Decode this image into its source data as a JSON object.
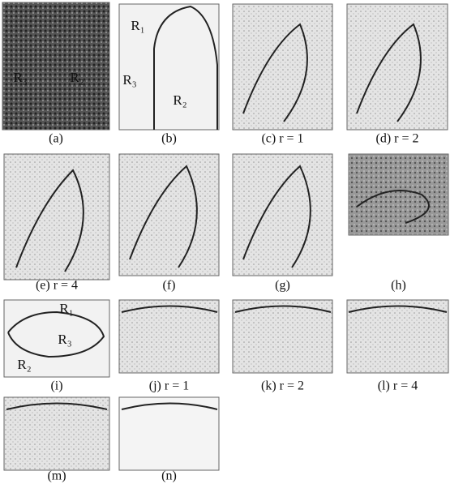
{
  "figure": {
    "panels": [
      {
        "caption": "(a)",
        "labels": [
          "R₃",
          "R₂"
        ]
      },
      {
        "caption": "(b)",
        "labels": [
          "R₁",
          "R₃",
          "R₂"
        ]
      },
      {
        "caption": "(c) r = 1"
      },
      {
        "caption": "(d) r = 2"
      },
      {
        "caption": "(e) r = 4"
      },
      {
        "caption": "(f)"
      },
      {
        "caption": "(g)"
      },
      {
        "caption": "(h)"
      },
      {
        "caption": "(i)",
        "labels": [
          "R₁",
          "R₃",
          "R₂"
        ]
      },
      {
        "caption": "(j) r = 1"
      },
      {
        "caption": "(k) r = 2"
      },
      {
        "caption": "(l) r = 4"
      },
      {
        "caption": "(m)"
      },
      {
        "caption": "(n)"
      }
    ]
  }
}
